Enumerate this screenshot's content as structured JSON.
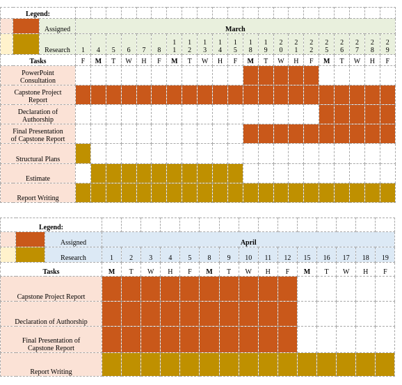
{
  "chart_data": {
    "type": "table",
    "gantt_march": {
      "legend_title": "Legend:",
      "legend": [
        {
          "label": "Assigned",
          "color": "#c9581a"
        },
        {
          "label": "Research",
          "color": "#bf9000"
        }
      ],
      "month": "March",
      "tasks_header": "Tasks",
      "days": [
        {
          "d": [
            "1"
          ],
          "w": "F"
        },
        {
          "d": [
            "4"
          ],
          "w": "M",
          "bold": true
        },
        {
          "d": [
            "5"
          ],
          "w": "T"
        },
        {
          "d": [
            "6"
          ],
          "w": "W"
        },
        {
          "d": [
            "7"
          ],
          "w": "H"
        },
        {
          "d": [
            "8"
          ],
          "w": "F"
        },
        {
          "d": [
            "1",
            "1"
          ],
          "w": "M",
          "bold": true
        },
        {
          "d": [
            "1",
            "2"
          ],
          "w": "T"
        },
        {
          "d": [
            "1",
            "3"
          ],
          "w": "W"
        },
        {
          "d": [
            "1",
            "4"
          ],
          "w": "H"
        },
        {
          "d": [
            "1",
            "5"
          ],
          "w": "F"
        },
        {
          "d": [
            "1",
            "8"
          ],
          "w": "M",
          "bold": true
        },
        {
          "d": [
            "1",
            "9"
          ],
          "w": "T"
        },
        {
          "d": [
            "2",
            "0"
          ],
          "w": "W"
        },
        {
          "d": [
            "2",
            "1"
          ],
          "w": "H"
        },
        {
          "d": [
            "2",
            "2"
          ],
          "w": "F"
        },
        {
          "d": [
            "2",
            "5"
          ],
          "w": "M",
          "bold": true
        },
        {
          "d": [
            "2",
            "6"
          ],
          "w": "T"
        },
        {
          "d": [
            "2",
            "7"
          ],
          "w": "W"
        },
        {
          "d": [
            "2",
            "8"
          ],
          "w": "H"
        },
        {
          "d": [
            "2",
            "9"
          ],
          "w": "F"
        }
      ],
      "tasks": [
        {
          "name": [
            "PowerPoint",
            "Consultation"
          ],
          "cells": "...........AAAAA....."
        },
        {
          "name": [
            "Capstone Project",
            "Report"
          ],
          "cells": "AAAAAAAAAAAAAAAAAAAAA"
        },
        {
          "name": [
            "Declaration of",
            "Authorship"
          ],
          "cells": "................AAAAA"
        },
        {
          "name": [
            "Final Presentation",
            "of Capstone Report"
          ],
          "cells": "...........AAAAAAAAAA"
        },
        {
          "name": [
            "Structural Plans"
          ],
          "cells": "R...................."
        },
        {
          "name": [
            "Estimate"
          ],
          "cells": ".RRRRRRRRRR.........."
        },
        {
          "name": [
            "Report Writing"
          ],
          "cells": "RRRRRRRRRRRRRRRRRRRRR"
        }
      ]
    },
    "gantt_april": {
      "legend_title": "Legend:",
      "legend": [
        {
          "label": "Assigned",
          "color": "#c9581a"
        },
        {
          "label": "Research",
          "color": "#bf9000"
        }
      ],
      "month": "April",
      "tasks_header": "Tasks",
      "days": [
        {
          "d": [
            "1"
          ],
          "w": "M",
          "bold": true
        },
        {
          "d": [
            "2"
          ],
          "w": "T"
        },
        {
          "d": [
            "3"
          ],
          "w": "W"
        },
        {
          "d": [
            "4"
          ],
          "w": "H"
        },
        {
          "d": [
            "5"
          ],
          "w": "F"
        },
        {
          "d": [
            "8"
          ],
          "w": "M",
          "bold": true
        },
        {
          "d": [
            "9"
          ],
          "w": "T"
        },
        {
          "d": [
            "10"
          ],
          "w": "W"
        },
        {
          "d": [
            "11"
          ],
          "w": "H"
        },
        {
          "d": [
            "12"
          ],
          "w": "F"
        },
        {
          "d": [
            "15"
          ],
          "w": "M",
          "bold": true
        },
        {
          "d": [
            "16"
          ],
          "w": "T"
        },
        {
          "d": [
            "17"
          ],
          "w": "W"
        },
        {
          "d": [
            "18"
          ],
          "w": "H"
        },
        {
          "d": [
            "19"
          ],
          "w": "F"
        }
      ],
      "tasks": [
        {
          "name": [
            "Capstone Project Report"
          ],
          "cells": "AAAAAAAAAA....."
        },
        {
          "name": [
            "Declaration of Authorship"
          ],
          "cells": "AAAAAAAAAA....."
        },
        {
          "name": [
            "Final Presentation of",
            "Capstone Report"
          ],
          "cells": "AAAAAAAAAA....."
        },
        {
          "name": [
            "Report Writing"
          ],
          "cells": "RRRRRRRRRRRRRRR"
        }
      ]
    }
  }
}
